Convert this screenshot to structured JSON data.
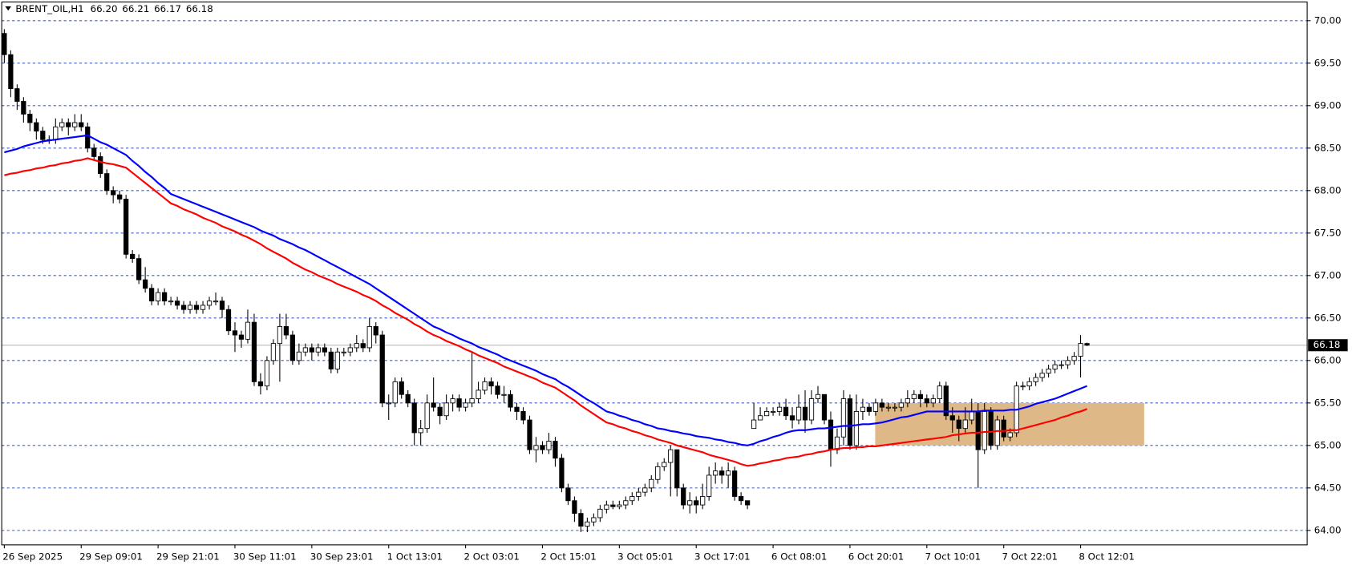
{
  "chart_data": {
    "type": "candlestick",
    "symbol": "BRENT_OIL,H1",
    "quote": [
      {
        "value": 66.2,
        "label": "66.20"
      },
      {
        "value": 66.21,
        "label": "66.21"
      },
      {
        "value": 66.17,
        "label": "66.17"
      },
      {
        "value": 66.18,
        "label": "66.18"
      }
    ],
    "categories": [
      "26 Sep 2025",
      null,
      null,
      null,
      null,
      null,
      null,
      null,
      null,
      null,
      null,
      null,
      "29 Sep 09:01",
      null,
      null,
      null,
      null,
      null,
      null,
      null,
      null,
      null,
      null,
      null,
      "29 Sep 21:01",
      null,
      null,
      null,
      null,
      null,
      null,
      null,
      null,
      null,
      null,
      null,
      "30 Sep 11:01",
      null,
      null,
      null,
      null,
      null,
      null,
      null,
      null,
      null,
      null,
      null,
      "30 Sep 23:01",
      null,
      null,
      null,
      null,
      null,
      null,
      null,
      null,
      null,
      null,
      null,
      "1 Oct 13:01",
      null,
      null,
      null,
      null,
      null,
      null,
      null,
      null,
      null,
      null,
      null,
      "2 Oct 03:01",
      null,
      null,
      null,
      null,
      null,
      null,
      null,
      null,
      null,
      null,
      null,
      "2 Oct 15:01",
      null,
      null,
      null,
      null,
      null,
      null,
      null,
      null,
      null,
      null,
      null,
      "3 Oct 05:01",
      null,
      null,
      null,
      null,
      null,
      null,
      null,
      null,
      null,
      null,
      null,
      "3 Oct 17:01",
      null,
      null,
      null,
      null,
      null,
      null,
      null,
      null,
      null,
      null,
      null,
      "6 Oct 08:01",
      null,
      null,
      null,
      null,
      null,
      null,
      null,
      null,
      null,
      null,
      null,
      "6 Oct 20:01",
      null,
      null,
      null,
      null,
      null,
      null,
      null,
      null,
      null,
      null,
      null,
      "7 Oct 10:01",
      null,
      null,
      null,
      null,
      null,
      null,
      null,
      null,
      null,
      null,
      null,
      "7 Oct 22:01",
      null,
      null,
      null,
      null,
      null,
      null,
      null,
      null,
      null,
      null,
      null,
      "8 Oct 12:01",
      null
    ],
    "open": [
      69.85,
      69.6,
      69.2,
      69.05,
      68.9,
      68.8,
      68.7,
      68.6,
      68.6,
      68.75,
      68.8,
      68.75,
      68.8,
      68.75,
      68.5,
      68.4,
      68.2,
      68.0,
      67.95,
      67.9,
      67.25,
      67.2,
      66.95,
      66.85,
      66.7,
      66.8,
      66.7,
      66.7,
      66.65,
      66.6,
      66.65,
      66.6,
      66.65,
      66.7,
      66.7,
      66.6,
      66.35,
      66.3,
      66.25,
      66.45,
      65.75,
      65.7,
      66.0,
      66.2,
      66.4,
      66.3,
      66.0,
      66.1,
      66.15,
      66.1,
      66.15,
      66.1,
      65.9,
      66.1,
      66.1,
      66.15,
      66.2,
      66.15,
      66.4,
      66.3,
      65.5,
      65.5,
      65.75,
      65.6,
      65.5,
      65.15,
      65.2,
      65.5,
      65.45,
      65.35,
      65.5,
      65.55,
      65.45,
      65.5,
      65.55,
      65.65,
      65.75,
      65.7,
      65.6,
      65.6,
      65.45,
      65.4,
      65.3,
      64.95,
      65.0,
      64.95,
      65.05,
      64.85,
      64.5,
      64.35,
      64.2,
      64.05,
      64.1,
      64.15,
      64.25,
      64.3,
      64.28,
      64.3,
      64.35,
      64.4,
      64.45,
      64.5,
      64.6,
      64.75,
      64.8,
      64.95,
      64.5,
      64.3,
      64.35,
      64.3,
      64.4,
      64.65,
      64.7,
      64.65,
      64.7,
      64.4,
      64.35,
      65.2,
      65.3,
      65.35,
      65.4,
      65.4,
      65.45,
      65.35,
      65.3,
      65.45,
      65.3,
      65.55,
      65.6,
      65.3,
      64.95,
      65.1,
      65.55,
      65.0,
      65.4,
      65.45,
      65.4,
      65.5,
      65.45,
      65.45,
      65.45,
      65.5,
      65.55,
      65.6,
      65.55,
      65.5,
      65.55,
      65.7,
      65.35,
      65.3,
      65.2,
      65.3,
      65.4,
      64.95,
      65.4,
      65.0,
      65.3,
      65.1,
      65.15,
      65.7,
      65.7,
      65.75,
      65.8,
      65.85,
      65.9,
      65.95,
      65.95,
      66.0,
      66.05,
      66.2
    ],
    "high": [
      69.9,
      69.65,
      69.25,
      69.1,
      68.95,
      68.85,
      68.75,
      68.65,
      68.85,
      68.85,
      68.85,
      68.9,
      68.9,
      68.8,
      68.55,
      68.45,
      68.25,
      68.05,
      68.0,
      67.95,
      67.3,
      67.25,
      67.1,
      66.9,
      66.85,
      66.85,
      66.75,
      66.75,
      66.7,
      66.7,
      66.7,
      66.7,
      66.75,
      66.8,
      66.75,
      66.65,
      66.45,
      66.35,
      66.6,
      66.55,
      65.85,
      66.05,
      66.25,
      66.55,
      66.55,
      66.35,
      66.2,
      66.2,
      66.2,
      66.2,
      66.2,
      66.15,
      66.15,
      66.15,
      66.2,
      66.3,
      66.25,
      66.5,
      66.45,
      66.35,
      65.6,
      65.8,
      65.8,
      65.65,
      65.55,
      65.3,
      65.6,
      65.8,
      65.5,
      65.6,
      65.6,
      65.6,
      65.55,
      66.1,
      65.75,
      65.8,
      65.8,
      65.75,
      65.7,
      65.65,
      65.5,
      65.45,
      65.35,
      65.1,
      65.05,
      65.15,
      65.1,
      64.9,
      64.55,
      64.4,
      64.25,
      64.15,
      64.2,
      64.3,
      64.35,
      64.35,
      64.35,
      64.4,
      64.45,
      64.5,
      64.55,
      64.65,
      64.8,
      64.85,
      65.0,
      64.95,
      64.55,
      64.45,
      64.4,
      64.55,
      64.75,
      64.8,
      64.75,
      64.8,
      64.75,
      64.45,
      64.35,
      65.5,
      65.45,
      65.45,
      65.45,
      65.5,
      65.55,
      65.45,
      65.6,
      65.65,
      65.65,
      65.7,
      65.6,
      65.4,
      65.2,
      65.65,
      65.6,
      65.6,
      65.55,
      65.5,
      65.55,
      65.55,
      65.5,
      65.5,
      65.55,
      65.65,
      65.65,
      65.65,
      65.6,
      65.6,
      65.75,
      65.75,
      65.45,
      65.35,
      65.45,
      65.55,
      65.5,
      65.5,
      65.45,
      65.35,
      65.35,
      65.2,
      65.75,
      65.75,
      65.8,
      65.85,
      65.9,
      65.95,
      66.0,
      66.0,
      66.05,
      66.1,
      66.3,
      66.21
    ],
    "low": [
      69.5,
      69.1,
      68.95,
      68.8,
      68.7,
      68.6,
      68.55,
      68.55,
      68.55,
      68.7,
      68.65,
      68.7,
      68.7,
      68.45,
      68.35,
      68.15,
      67.95,
      67.85,
      67.85,
      67.2,
      67.15,
      66.9,
      66.8,
      66.65,
      66.65,
      66.65,
      66.65,
      66.6,
      66.55,
      66.55,
      66.55,
      66.55,
      66.6,
      66.65,
      66.5,
      66.3,
      66.1,
      66.15,
      66.2,
      65.7,
      65.6,
      65.65,
      65.95,
      65.75,
      66.25,
      65.95,
      65.95,
      66.05,
      66.0,
      66.05,
      66.05,
      65.85,
      65.85,
      66.05,
      66.05,
      66.1,
      66.1,
      66.1,
      66.2,
      65.45,
      65.3,
      65.45,
      65.55,
      65.45,
      65.0,
      65.0,
      65.15,
      65.4,
      65.25,
      65.3,
      65.4,
      65.4,
      65.4,
      65.45,
      65.5,
      65.6,
      65.6,
      65.55,
      65.5,
      65.4,
      65.3,
      65.25,
      64.9,
      64.8,
      64.9,
      64.9,
      64.75,
      64.45,
      64.3,
      64.1,
      63.98,
      63.98,
      64.05,
      64.1,
      64.2,
      64.25,
      64.25,
      64.25,
      64.3,
      64.35,
      64.4,
      64.45,
      64.55,
      64.7,
      64.4,
      64.4,
      64.25,
      64.2,
      64.2,
      64.25,
      64.35,
      64.55,
      64.55,
      64.5,
      64.35,
      64.3,
      64.25,
      65.2,
      65.3,
      65.35,
      65.35,
      65.35,
      65.3,
      65.2,
      65.25,
      65.15,
      65.25,
      65.5,
      65.25,
      64.75,
      64.9,
      65.0,
      64.95,
      64.95,
      65.3,
      65.35,
      65.35,
      65.4,
      65.4,
      65.4,
      65.4,
      65.45,
      65.5,
      65.45,
      65.45,
      65.45,
      65.5,
      65.3,
      65.15,
      65.05,
      65.15,
      65.25,
      64.5,
      64.9,
      64.95,
      64.95,
      65.05,
      65.05,
      65.1,
      65.65,
      65.65,
      65.7,
      65.75,
      65.8,
      65.85,
      65.9,
      65.9,
      65.95,
      65.8,
      66.17
    ],
    "close": [
      69.6,
      69.2,
      69.05,
      68.9,
      68.8,
      68.7,
      68.6,
      68.6,
      68.75,
      68.8,
      68.75,
      68.8,
      68.75,
      68.5,
      68.4,
      68.2,
      68.0,
      67.95,
      67.9,
      67.25,
      67.2,
      66.95,
      66.85,
      66.7,
      66.8,
      66.7,
      66.7,
      66.65,
      66.6,
      66.65,
      66.6,
      66.65,
      66.7,
      66.7,
      66.6,
      66.35,
      66.3,
      66.25,
      66.45,
      65.75,
      65.7,
      66.0,
      66.2,
      66.4,
      66.3,
      66.0,
      66.1,
      66.15,
      66.1,
      66.15,
      66.1,
      65.9,
      66.1,
      66.1,
      66.15,
      66.2,
      66.15,
      66.4,
      66.3,
      65.5,
      65.5,
      65.75,
      65.6,
      65.5,
      65.15,
      65.2,
      65.5,
      65.45,
      65.35,
      65.5,
      65.55,
      65.45,
      65.5,
      65.55,
      65.65,
      65.75,
      65.7,
      65.6,
      65.6,
      65.45,
      65.4,
      65.3,
      64.95,
      65.0,
      64.95,
      65.05,
      64.85,
      64.5,
      64.35,
      64.2,
      64.05,
      64.1,
      64.15,
      64.25,
      64.3,
      64.28,
      64.3,
      64.35,
      64.4,
      64.45,
      64.5,
      64.6,
      64.75,
      64.8,
      64.95,
      64.5,
      64.3,
      64.35,
      64.3,
      64.4,
      64.65,
      64.7,
      64.65,
      64.7,
      64.4,
      64.35,
      64.3,
      65.3,
      65.35,
      65.4,
      65.4,
      65.45,
      65.35,
      65.3,
      65.45,
      65.3,
      65.55,
      65.6,
      65.3,
      64.95,
      65.1,
      65.55,
      65.0,
      65.4,
      65.45,
      65.4,
      65.5,
      65.45,
      65.45,
      65.45,
      65.5,
      65.55,
      65.6,
      65.55,
      65.5,
      65.55,
      65.7,
      65.35,
      65.3,
      65.2,
      65.3,
      65.4,
      64.95,
      65.4,
      65.0,
      65.3,
      65.1,
      65.15,
      65.7,
      65.7,
      65.75,
      65.8,
      65.85,
      65.9,
      65.95,
      65.95,
      66.0,
      66.05,
      66.2,
      66.18
    ],
    "series": [
      {
        "color": "#0000ff",
        "values": [
          68.45,
          68.47,
          68.49,
          68.52,
          68.54,
          68.56,
          68.58,
          68.59,
          68.6,
          68.61,
          68.62,
          68.63,
          68.64,
          68.65,
          68.61,
          68.57,
          68.54,
          68.5,
          68.46,
          68.42,
          68.35,
          68.29,
          68.22,
          68.16,
          68.09,
          68.03,
          67.96,
          67.93,
          67.9,
          67.87,
          67.84,
          67.81,
          67.78,
          67.75,
          67.72,
          67.69,
          67.66,
          67.63,
          67.6,
          67.57,
          67.53,
          67.5,
          67.47,
          67.43,
          67.4,
          67.37,
          67.33,
          67.3,
          67.26,
          67.22,
          67.18,
          67.14,
          67.1,
          67.06,
          67.02,
          66.98,
          66.94,
          66.9,
          66.85,
          66.8,
          66.75,
          66.7,
          66.65,
          66.6,
          66.55,
          66.5,
          66.45,
          66.4,
          66.37,
          66.33,
          66.3,
          66.26,
          66.23,
          66.2,
          66.16,
          66.13,
          66.1,
          66.07,
          66.03,
          66.0,
          65.97,
          65.94,
          65.91,
          65.88,
          65.84,
          65.81,
          65.78,
          65.73,
          65.69,
          65.64,
          65.59,
          65.54,
          65.5,
          65.45,
          65.4,
          65.38,
          65.35,
          65.33,
          65.3,
          65.28,
          65.25,
          65.23,
          65.2,
          65.19,
          65.17,
          65.16,
          65.14,
          65.13,
          65.11,
          65.1,
          65.09,
          65.07,
          65.06,
          65.04,
          65.03,
          65.01,
          65.0,
          65.02,
          65.05,
          65.07,
          65.1,
          65.12,
          65.15,
          65.17,
          65.18,
          65.18,
          65.19,
          65.2,
          65.2,
          65.21,
          65.22,
          65.23,
          65.23,
          65.24,
          65.25,
          65.25,
          65.26,
          65.27,
          65.29,
          65.31,
          65.33,
          65.34,
          65.36,
          65.38,
          65.4,
          65.4,
          65.4,
          65.4,
          65.4,
          65.4,
          65.4,
          65.4,
          65.4,
          65.41,
          65.41,
          65.41,
          65.41,
          65.42,
          65.42,
          65.44,
          65.46,
          65.49,
          65.51,
          65.53,
          65.55,
          65.58,
          65.61,
          65.64,
          65.67,
          65.7
        ]
      },
      {
        "color": "#ff0000",
        "values": [
          68.18,
          68.2,
          68.21,
          68.23,
          68.24,
          68.26,
          68.27,
          68.29,
          68.3,
          68.32,
          68.33,
          68.35,
          68.36,
          68.38,
          68.36,
          68.34,
          68.32,
          68.31,
          68.29,
          68.27,
          68.21,
          68.15,
          68.09,
          68.03,
          67.97,
          67.91,
          67.85,
          67.82,
          67.78,
          67.75,
          67.72,
          67.68,
          67.65,
          67.62,
          67.58,
          67.55,
          67.52,
          67.48,
          67.45,
          67.41,
          67.37,
          67.32,
          67.28,
          67.24,
          67.2,
          67.15,
          67.11,
          67.07,
          67.04,
          67.0,
          66.97,
          66.94,
          66.9,
          66.87,
          66.84,
          66.81,
          66.77,
          66.74,
          66.7,
          66.65,
          66.61,
          66.56,
          66.52,
          66.48,
          66.43,
          66.39,
          66.34,
          66.3,
          66.27,
          66.23,
          66.2,
          66.17,
          66.13,
          66.1,
          66.06,
          66.03,
          66.0,
          65.97,
          65.93,
          65.9,
          65.87,
          65.84,
          65.81,
          65.78,
          65.74,
          65.71,
          65.68,
          65.63,
          65.58,
          65.53,
          65.47,
          65.42,
          65.37,
          65.32,
          65.27,
          65.25,
          65.22,
          65.2,
          65.17,
          65.15,
          65.12,
          65.1,
          65.07,
          65.05,
          65.03,
          65.0,
          64.98,
          64.96,
          64.94,
          64.92,
          64.89,
          64.87,
          64.85,
          64.83,
          64.81,
          64.78,
          64.76,
          64.77,
          64.79,
          64.8,
          64.82,
          64.83,
          64.85,
          64.86,
          64.87,
          64.89,
          64.9,
          64.92,
          64.93,
          64.95,
          64.96,
          64.97,
          64.97,
          64.98,
          64.98,
          64.99,
          64.99,
          65.0,
          65.01,
          65.02,
          65.03,
          65.04,
          65.05,
          65.06,
          65.07,
          65.08,
          65.09,
          65.1,
          65.12,
          65.13,
          65.14,
          65.15,
          65.15,
          65.16,
          65.16,
          65.17,
          65.17,
          65.18,
          65.18,
          65.2,
          65.22,
          65.24,
          65.26,
          65.28,
          65.3,
          65.33,
          65.35,
          65.38,
          65.4,
          65.43
        ]
      }
    ],
    "zone": {
      "low": 65.0,
      "high": 65.5,
      "color": "#deb887"
    },
    "last_price": {
      "value": 66.18,
      "label": "66.18"
    },
    "ylim": [
      63.83,
      70.22
    ],
    "yticks": [
      {
        "value": 64,
        "label": "64.00"
      },
      {
        "value": 64.5,
        "label": "64.50"
      },
      {
        "value": 65,
        "label": "65.00"
      },
      {
        "value": 65.5,
        "label": "65.50"
      },
      {
        "value": 66,
        "label": "66.00"
      },
      {
        "value": 66.5,
        "label": "66.50"
      },
      {
        "value": 67,
        "label": "67.00"
      },
      {
        "value": 67.5,
        "label": "67.50"
      },
      {
        "value": 68,
        "label": "68.00"
      },
      {
        "value": 68.5,
        "label": "68.50"
      },
      {
        "value": 69,
        "label": "69.00"
      },
      {
        "value": 69.5,
        "label": "69.50"
      },
      {
        "value": 70,
        "label": "70.00"
      }
    ],
    "grid": true
  }
}
